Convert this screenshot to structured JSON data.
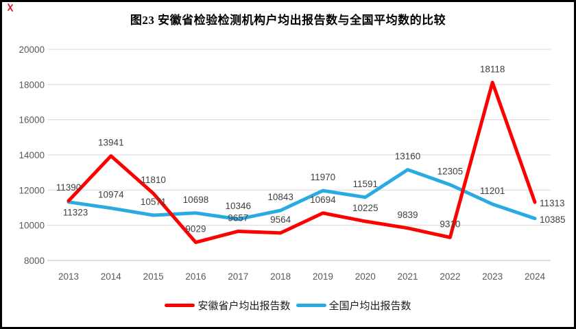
{
  "chart_data": {
    "type": "line",
    "title": "图23 安徽省检验检测机构户均出报告数与全国平均数的比较",
    "categories": [
      "2013",
      "2014",
      "2015",
      "2016",
      "2017",
      "2018",
      "2019",
      "2020",
      "2021",
      "2022",
      "2023",
      "2024"
    ],
    "series": [
      {
        "name": "全国户均出报告数",
        "color": "#29ABE2",
        "values": [
          11323,
          10974,
          10571,
          10698,
          10346,
          10843,
          11970,
          11591,
          13160,
          12305,
          11201,
          10385
        ],
        "label_pos": [
          "below",
          "above",
          "above",
          "above",
          "above",
          "above",
          "above",
          "above",
          "above",
          "above",
          "above",
          "right"
        ]
      },
      {
        "name": "安徽省户均出报告数",
        "color": "#FF0000",
        "values": [
          11390,
          13941,
          11810,
          9029,
          9657,
          9564,
          10694,
          10225,
          9839,
          9310,
          18118,
          11313
        ],
        "label_pos": [
          "above",
          "above",
          "above",
          "above",
          "above",
          "above",
          "above",
          "above",
          "above",
          "above",
          "above",
          "right"
        ]
      }
    ],
    "legend_order": [
      1,
      0
    ],
    "ylim": [
      8000,
      20000
    ],
    "ytick_step": 2000,
    "yticks": [
      8000,
      10000,
      12000,
      14000,
      16000,
      18000,
      20000
    ],
    "grid": true,
    "legend_position": "bottom",
    "data_labels": true
  },
  "colors": {
    "grid": "#D9D9D9",
    "axis_line": "#BFBFBF",
    "tick_text": "#595959",
    "label_text": "#3F3F3F",
    "title_text": "#000000",
    "corner_mark": "#E8112D"
  }
}
